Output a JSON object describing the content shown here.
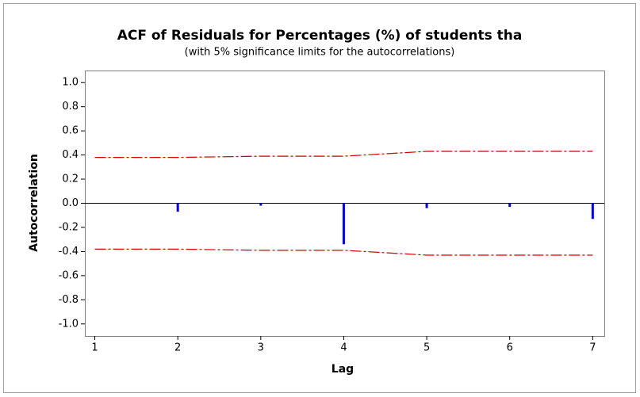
{
  "chart_data": {
    "type": "acf",
    "title": "ACF of Residuals for Percentages (%) of students tha",
    "subtitle": "(with 5% significance limits for the autocorrelations)",
    "x_label": "Lag",
    "y_label": "Autocorrelation",
    "x": [
      1,
      2,
      3,
      4,
      5,
      6,
      7
    ],
    "values": [
      0.0,
      -0.07,
      -0.02,
      -0.34,
      -0.04,
      -0.03,
      -0.13
    ],
    "color": "#0000ff",
    "upper_limit": [
      0.38,
      0.38,
      0.39,
      0.39,
      0.43,
      0.43,
      0.43
    ],
    "lower_limit": [
      -0.38,
      -0.38,
      -0.39,
      -0.39,
      -0.43,
      -0.43,
      -0.43
    ],
    "limit_color": "#cc0000",
    "xlim": [
      0.88,
      7.14
    ],
    "ylim": [
      -1.1,
      1.1
    ],
    "xticks": [
      1,
      2,
      3,
      4,
      5,
      6,
      7
    ],
    "yticks": [
      {
        "value": -1.0,
        "label": "-1.0"
      },
      {
        "value": -0.8,
        "label": "-0.8"
      },
      {
        "value": -0.6,
        "label": "-0.6"
      },
      {
        "value": -0.4,
        "label": "-0.4"
      },
      {
        "value": -0.2,
        "label": "-0.2"
      },
      {
        "value": 0.0,
        "label": "0.0"
      },
      {
        "value": 0.2,
        "label": "0.2"
      },
      {
        "value": 0.4,
        "label": "0.4"
      },
      {
        "value": 0.6,
        "label": "0.6"
      },
      {
        "value": 0.8,
        "label": "0.8"
      },
      {
        "value": 1.0,
        "label": "1.0"
      }
    ]
  }
}
